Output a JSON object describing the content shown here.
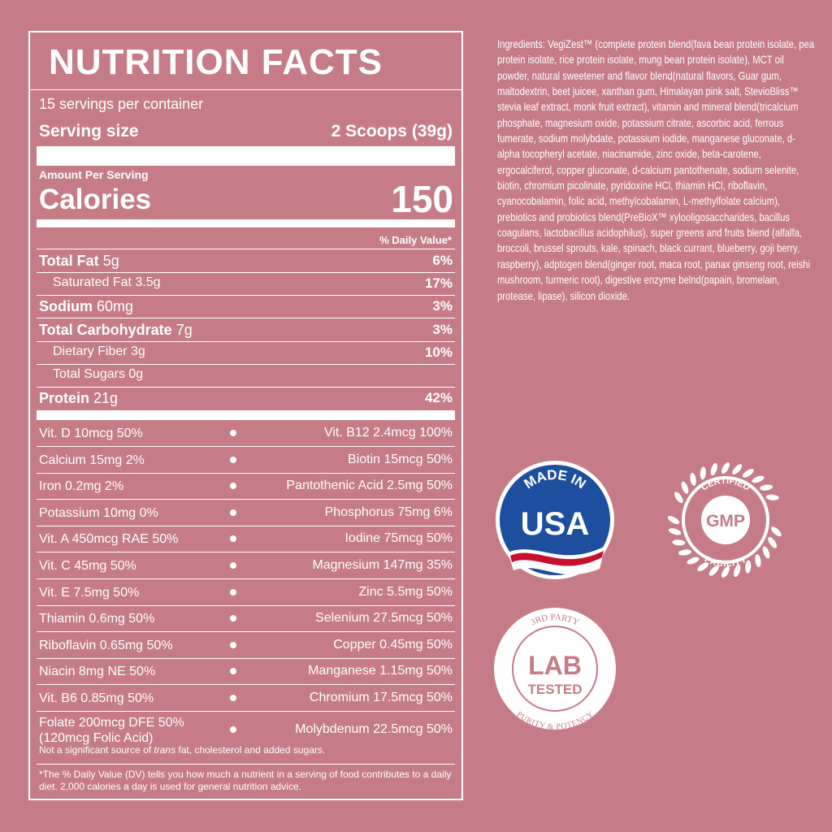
{
  "nutrition_facts": {
    "title": "NUTRITION FACTS",
    "servings": "15 servings per container",
    "serving_size_label": "Serving size",
    "serving_size": "2 Scoops (39g)",
    "amount_per_serving": "Amount Per Serving",
    "calories_label": "Calories",
    "calories": 150,
    "daily_value_header": "% Daily Value*",
    "nutrients": [
      {
        "name": "Total Fat",
        "amount": "5g",
        "dv": "6%",
        "bold": true
      },
      {
        "name": "Saturated Fat 3.5g",
        "dv": "17%",
        "bold": false
      },
      {
        "name": "Sodium",
        "amount": "60mg",
        "dv": "3%",
        "bold": true
      },
      {
        "name": "Total Carbohydrate",
        "amount": "7g",
        "dv": "3%",
        "bold": true
      },
      {
        "name": "Dietary Fiber 3g",
        "dv": "10%",
        "bold": false
      },
      {
        "name": "Total Sugars 0g",
        "bold": false
      },
      {
        "name": "Protein",
        "amount": "21g",
        "dv": "42%",
        "bold": true
      }
    ],
    "vitamins": [
      {
        "left": "Vit. D 10mcg 50%",
        "right": "Vit. B12 2.4mcg 100%"
      },
      {
        "left": "Calcium 15mg 2%",
        "right": "Biotin 15mcg 50%"
      },
      {
        "left": "Iron 0.2mg 2%",
        "right": "Pantothenic Acid 2.5mg 50%"
      },
      {
        "left": "Potassium 10mg 0%",
        "right": "Phosphorus 75mg 6%"
      },
      {
        "left": "Vit. A 450mcg RAE 50%",
        "right": "Iodine 75mcg 50%"
      },
      {
        "left": "Vit. C 45mg 50%",
        "right": "Magnesium 147mg 35%"
      },
      {
        "left": "Vit. E 7.5mg 50%",
        "right": "Zinc 5.5mg 50%"
      },
      {
        "left": "Thiamin 0.6mg 50%",
        "right": "Selenium 27.5mcg 50%"
      },
      {
        "left": "Riboflavin 0.65mg 50%",
        "right": "Copper 0.45mg 50%"
      },
      {
        "left": "Niacin 8mg NE 50%",
        "right": "Manganese 1.15mg 50%"
      },
      {
        "left": "Vit. B6 0.85mg 50%",
        "right": "Chromium 17.5mcg 50%"
      },
      {
        "left": "Folate 200mcg DFE 50%",
        "left_note": "(120mcg Folic Acid)",
        "right": "Molybdenum 22.5mcg 50%"
      }
    ],
    "footnote": [
      "Not a significant source of ",
      "trans",
      " fat, cholesterol and added sugars."
    ],
    "disclaimer": "*The % Daily Value (DV) tells you how much a nutrient in a serving of food contributes to a daily diet. 2,000 calories a day is used for general nutrition advice."
  },
  "ingredients": "Ingredients: VegiZest™ (complete protein blend(fava bean protein isolate, pea protein isolate, rice protein isolate, mung bean protein isolate), MCT oil powder, natural sweetener and flavor blend(natural flavors, Guar gum, maltodextrin, beet juicee, xanthan gum, Himalayan pink salt, StevioBliss™ stevia leaf extract, monk fruit extract), vitamin and mineral blend(tricalcium phosphate, magnesium oxide, potassium citrate, ascorbic acid, ferrous fumerate, sodium molybdate, potassium iodide, manganese gluconate, d-alpha tocopheryl acetate, niacinamide, zinc oxide, beta-carotene, ergocalciferol, copper gluconate, d-calcium pantothenate, sodium selenite, biotin, chromium picolinate, pyridoxine HCl, thiamin HCl, riboflavin, cyanocobalamin, folic acid, methylcobalamin, L-methylfolate calcium), prebiotics and probiotics blend(PreBioX™ xylooligosaccharides, bacillus coagulans, lactobacillus acidophilus), super greens and fruits blend (alfalfa, broccoli, brussel sprouts, kale, spinach, black currant, blueberry, goji berry, raspberry), adptogen blend(ginger root, maca root, panax ginseng root, reishi mushroom, turmeric root), digestive enzyme belnd(papain, bromelain, protease, lipase), silicon dioxide.",
  "badges": {
    "usa": {
      "top": "MADE IN",
      "main": "USA"
    },
    "gmp": {
      "top": "CERTIFIED",
      "main": "GMP",
      "bottom": "FACILITY"
    },
    "lab": {
      "top": "3RD PARTY",
      "main": [
        "LAB",
        "TESTED"
      ],
      "bottom": "PURITY & POTENCY"
    }
  }
}
